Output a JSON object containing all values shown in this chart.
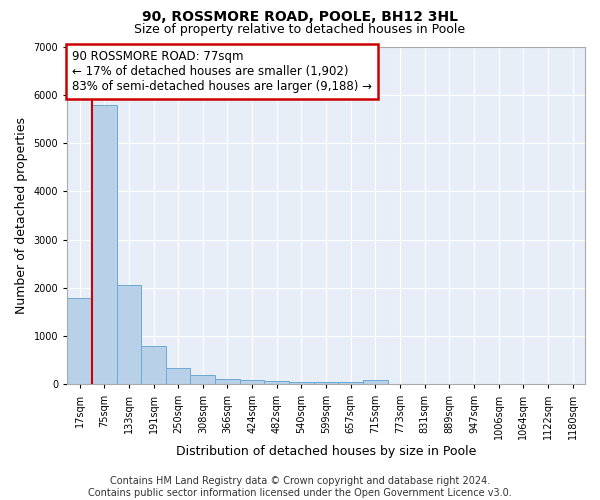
{
  "title": "90, ROSSMORE ROAD, POOLE, BH12 3HL",
  "subtitle": "Size of property relative to detached houses in Poole",
  "xlabel": "Distribution of detached houses by size in Poole",
  "ylabel": "Number of detached properties",
  "bar_labels": [
    "17sqm",
    "75sqm",
    "133sqm",
    "191sqm",
    "250sqm",
    "308sqm",
    "366sqm",
    "424sqm",
    "482sqm",
    "540sqm",
    "599sqm",
    "657sqm",
    "715sqm",
    "773sqm",
    "831sqm",
    "889sqm",
    "947sqm",
    "1006sqm",
    "1064sqm",
    "1122sqm",
    "1180sqm"
  ],
  "bar_values": [
    1780,
    5780,
    2060,
    790,
    340,
    195,
    105,
    85,
    70,
    55,
    50,
    45,
    90,
    0,
    0,
    0,
    0,
    0,
    0,
    0,
    0
  ],
  "bar_color": "#b8d0e8",
  "bar_edge_color": "#6aaad4",
  "annotation_line1": "90 ROSSMORE ROAD: 77sqm",
  "annotation_line2": "← 17% of detached houses are smaller (1,902)",
  "annotation_line3": "83% of semi-detached houses are larger (9,188) →",
  "annotation_box_color": "#ffffff",
  "annotation_box_edge_color": "#cc0000",
  "vline_color": "#cc0000",
  "vline_x_index": 0.5,
  "ylim": [
    0,
    7000
  ],
  "background_color": "#ffffff",
  "plot_bg_color": "#e8eef8",
  "grid_color": "#ffffff",
  "footer_text": "Contains HM Land Registry data © Crown copyright and database right 2024.\nContains public sector information licensed under the Open Government Licence v3.0.",
  "title_fontsize": 10,
  "subtitle_fontsize": 9,
  "axis_label_fontsize": 9,
  "tick_fontsize": 7,
  "annotation_fontsize": 8.5,
  "footer_fontsize": 7
}
